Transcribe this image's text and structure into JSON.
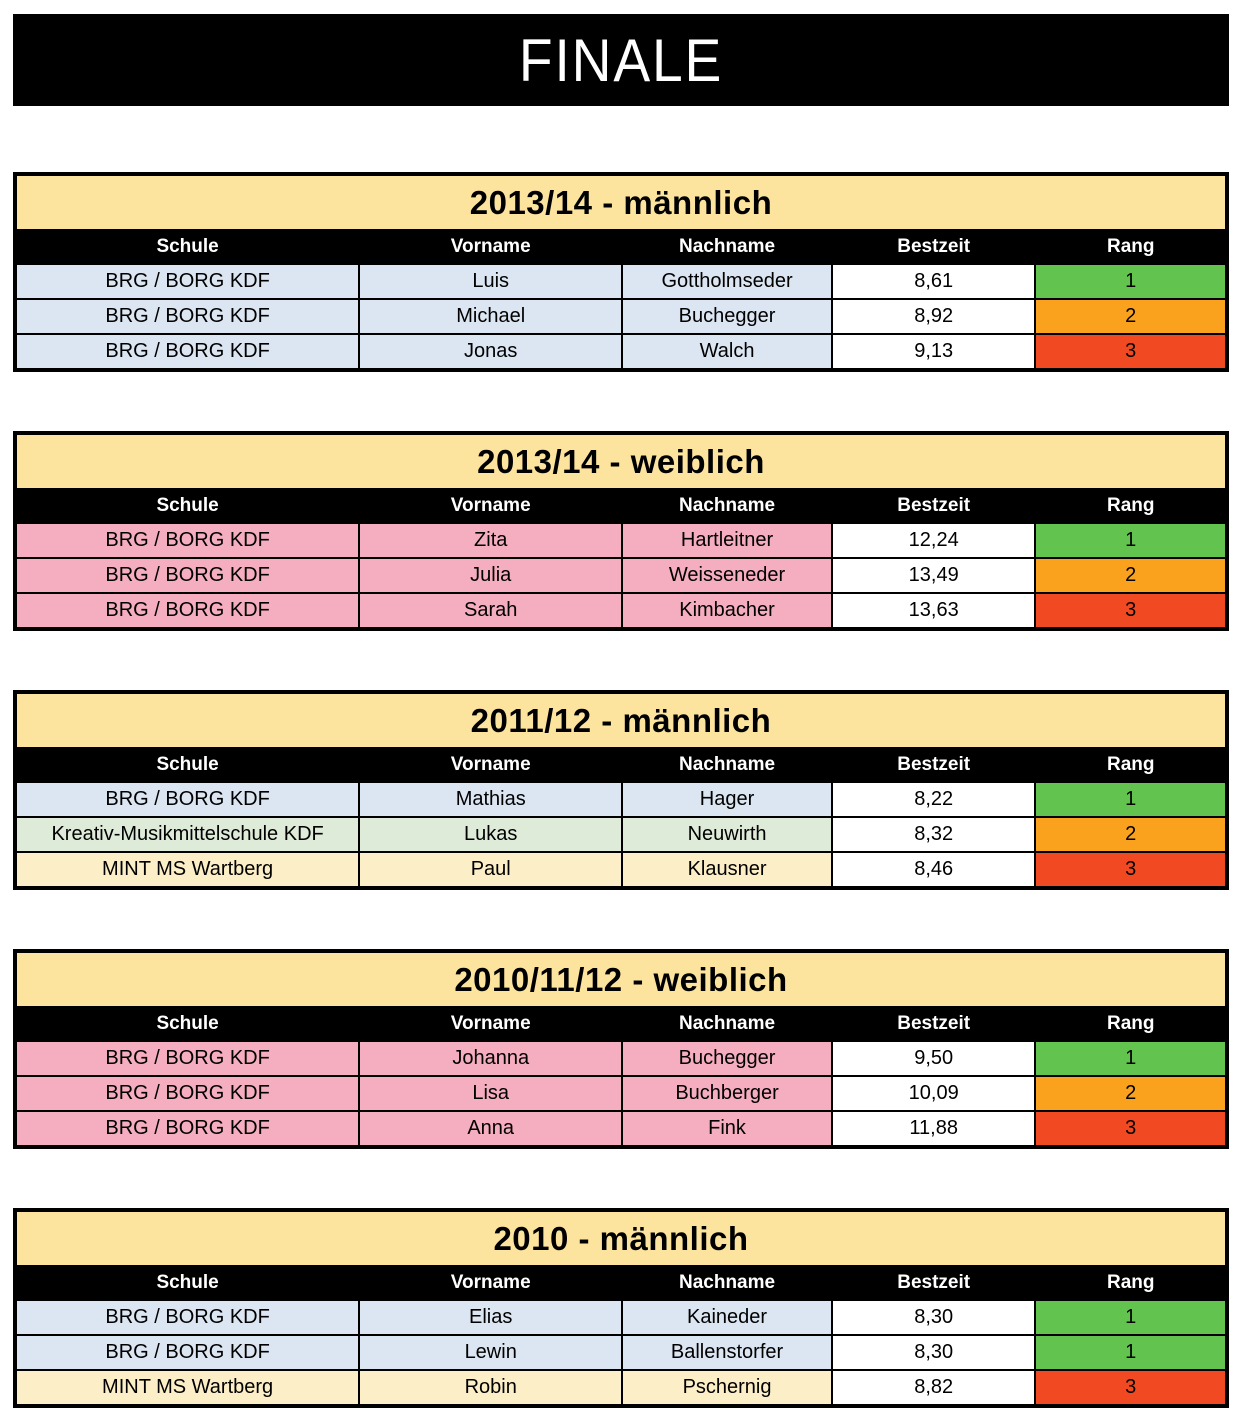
{
  "page": {
    "title": "FINALE"
  },
  "palette": {
    "banner_bg": "#000000",
    "banner_text": "#FFFFFF",
    "table_title_bg": "#FCE49E",
    "header_bg": "#000000",
    "header_text": "#FFFFFF",
    "school_blue": "#DCE6F2",
    "school_pink": "#F5ADC0",
    "school_green": "#DFEBD9",
    "school_yellow": "#FCEFC7",
    "bestzeit_bg": "#FFFFFF",
    "rank_first_green": "#62C44E",
    "rank_second_orange": "#FAA21D",
    "rank_third_red": "#F14A22",
    "border": "#000000"
  },
  "columns": [
    "Schule",
    "Vorname",
    "Nachname",
    "Bestzeit",
    "Rang"
  ],
  "tables": [
    {
      "title": "2013/14 - männlich",
      "rows": [
        {
          "schule": "BRG / BORG KDF",
          "vorname": "Luis",
          "nachname": "Gottholmseder",
          "bestzeit": "8,61",
          "rang": "1",
          "row_bg": "#DCE6F2",
          "rank_bg": "#62C44E"
        },
        {
          "schule": "BRG / BORG KDF",
          "vorname": "Michael",
          "nachname": "Buchegger",
          "bestzeit": "8,92",
          "rang": "2",
          "row_bg": "#DCE6F2",
          "rank_bg": "#FAA21D"
        },
        {
          "schule": "BRG / BORG KDF",
          "vorname": "Jonas",
          "nachname": "Walch",
          "bestzeit": "9,13",
          "rang": "3",
          "row_bg": "#DCE6F2",
          "rank_bg": "#F14A22"
        }
      ]
    },
    {
      "title": "2013/14 - weiblich",
      "rows": [
        {
          "schule": "BRG / BORG KDF",
          "vorname": "Zita",
          "nachname": "Hartleitner",
          "bestzeit": "12,24",
          "rang": "1",
          "row_bg": "#F5ADC0",
          "rank_bg": "#62C44E"
        },
        {
          "schule": "BRG / BORG KDF",
          "vorname": "Julia",
          "nachname": "Weisseneder",
          "bestzeit": "13,49",
          "rang": "2",
          "row_bg": "#F5ADC0",
          "rank_bg": "#FAA21D"
        },
        {
          "schule": "BRG / BORG KDF",
          "vorname": "Sarah",
          "nachname": "Kimbacher",
          "bestzeit": "13,63",
          "rang": "3",
          "row_bg": "#F5ADC0",
          "rank_bg": "#F14A22"
        }
      ]
    },
    {
      "title": "2011/12 - männlich",
      "rows": [
        {
          "schule": "BRG / BORG KDF",
          "vorname": "Mathias",
          "nachname": "Hager",
          "bestzeit": "8,22",
          "rang": "1",
          "row_bg": "#DCE6F2",
          "rank_bg": "#62C44E"
        },
        {
          "schule": "Kreativ-Musikmittelschule KDF",
          "vorname": "Lukas",
          "nachname": "Neuwirth",
          "bestzeit": "8,32",
          "rang": "2",
          "row_bg": "#DFEBD9",
          "rank_bg": "#FAA21D"
        },
        {
          "schule": "MINT MS Wartberg",
          "vorname": "Paul",
          "nachname": "Klausner",
          "bestzeit": "8,46",
          "rang": "3",
          "row_bg": "#FCEFC7",
          "rank_bg": "#F14A22"
        }
      ]
    },
    {
      "title": "2010/11/12 - weiblich",
      "rows": [
        {
          "schule": "BRG / BORG KDF",
          "vorname": "Johanna",
          "nachname": "Buchegger",
          "bestzeit": "9,50",
          "rang": "1",
          "row_bg": "#F5ADC0",
          "rank_bg": "#62C44E"
        },
        {
          "schule": "BRG / BORG KDF",
          "vorname": "Lisa",
          "nachname": "Buchberger",
          "bestzeit": "10,09",
          "rang": "2",
          "row_bg": "#F5ADC0",
          "rank_bg": "#FAA21D"
        },
        {
          "schule": "BRG / BORG KDF",
          "vorname": "Anna",
          "nachname": "Fink",
          "bestzeit": "11,88",
          "rang": "3",
          "row_bg": "#F5ADC0",
          "rank_bg": "#F14A22"
        }
      ]
    },
    {
      "title": "2010 - männlich",
      "rows": [
        {
          "schule": "BRG / BORG KDF",
          "vorname": "Elias",
          "nachname": "Kaineder",
          "bestzeit": "8,30",
          "rang": "1",
          "row_bg": "#DCE6F2",
          "rank_bg": "#62C44E"
        },
        {
          "schule": "BRG / BORG KDF",
          "vorname": "Lewin",
          "nachname": "Ballenstorfer",
          "bestzeit": "8,30",
          "rang": "1",
          "row_bg": "#DCE6F2",
          "rank_bg": "#62C44E"
        },
        {
          "schule": "MINT MS Wartberg",
          "vorname": "Robin",
          "nachname": "Pschernig",
          "bestzeit": "8,82",
          "rang": "3",
          "row_bg": "#FCEFC7",
          "rank_bg": "#F14A22"
        }
      ]
    }
  ]
}
